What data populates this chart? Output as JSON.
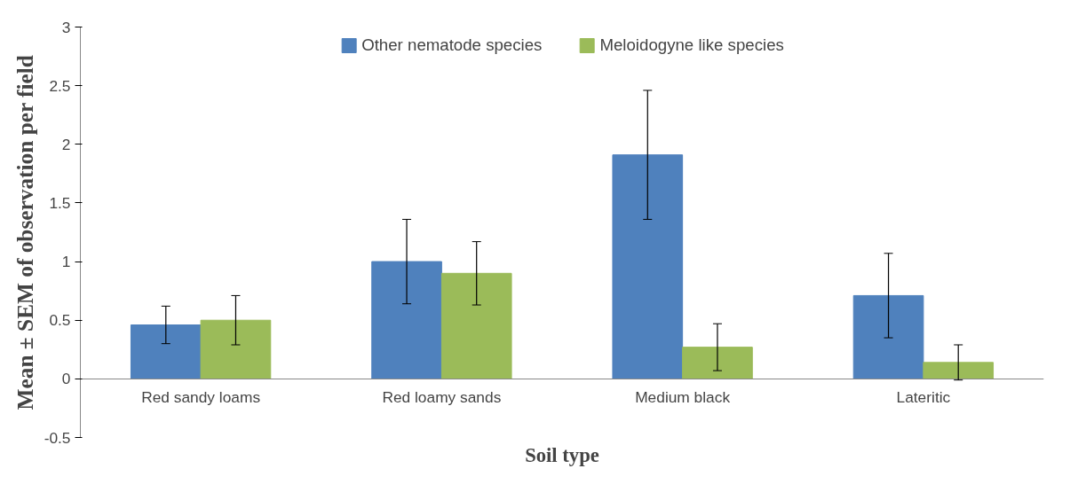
{
  "chart_data": {
    "type": "bar",
    "xlabel": "Soil type",
    "ylabel": "Mean ± SEM of observation per field",
    "categories": [
      "Red sandy loams",
      "Red loamy sands",
      "Medium black",
      "Lateritic"
    ],
    "series": [
      {
        "name": "Other nematode species",
        "color": "#4f81bd",
        "values": [
          0.46,
          1.0,
          1.91,
          0.71
        ],
        "errors": [
          0.16,
          0.36,
          0.55,
          0.36
        ]
      },
      {
        "name": "Meloidogyne like species",
        "color": "#9bbb59",
        "values": [
          0.5,
          0.9,
          0.27,
          0.14
        ],
        "errors": [
          0.21,
          0.27,
          0.2,
          0.15
        ]
      }
    ],
    "ylim": [
      -0.5,
      3
    ],
    "yticks": [
      -0.5,
      0,
      0.5,
      1,
      1.5,
      2,
      2.5,
      3
    ],
    "grid": false,
    "legend": "top"
  }
}
